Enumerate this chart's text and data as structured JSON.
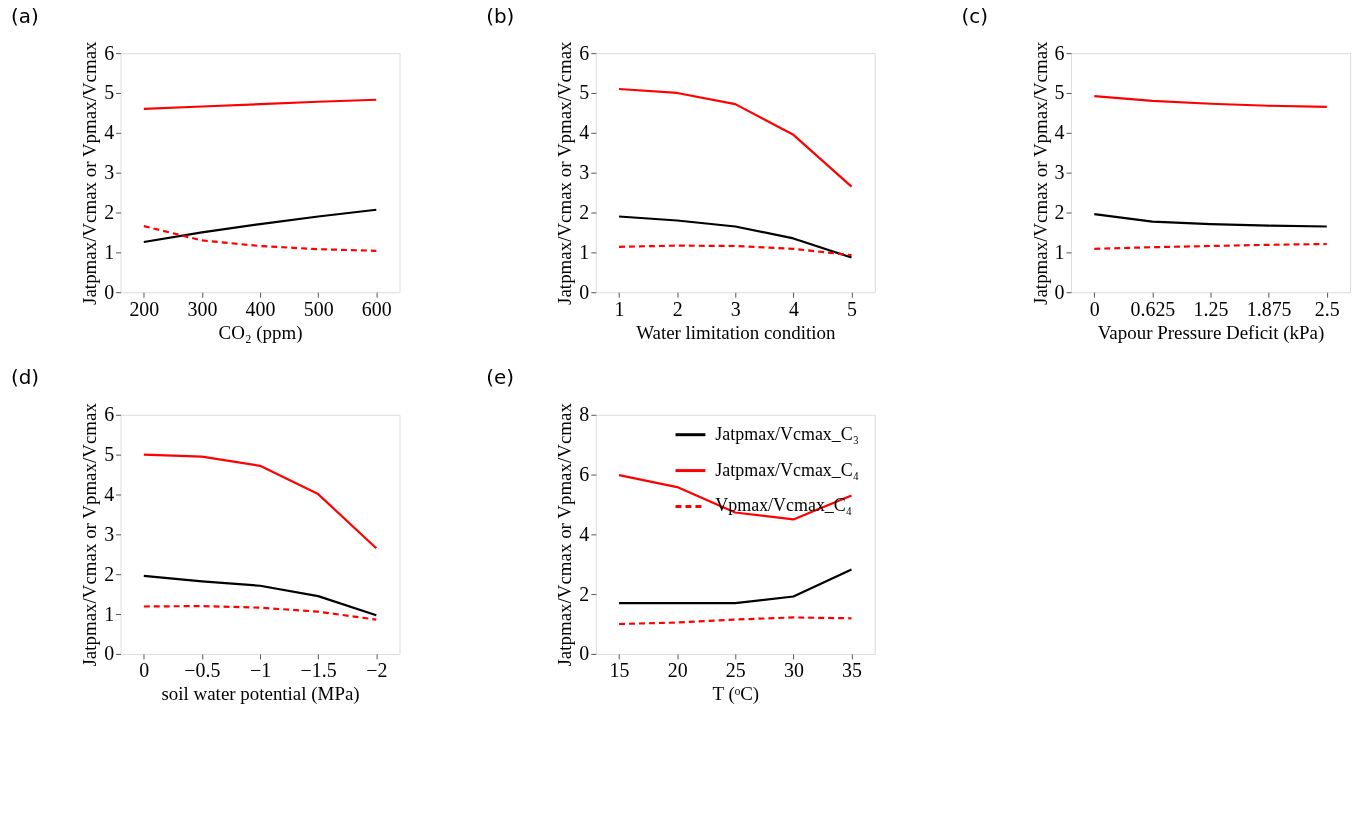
{
  "chart_data": [
    {
      "type": "line",
      "title": "(a)",
      "xlabel": "CO₂ (ppm)",
      "ylabel": "Jatpmax/Vcmax or Vpmax/Vcmax",
      "x": [
        200,
        300,
        400,
        500,
        600
      ],
      "xlim": [
        160,
        640
      ],
      "xticks": [
        200,
        300,
        400,
        500,
        600
      ],
      "ylim": [
        0,
        6
      ],
      "yticks": [
        0,
        1,
        2,
        3,
        4,
        5,
        6
      ],
      "grid": false,
      "legend": false,
      "series": [
        {
          "color": "#000000",
          "line_style": "solid",
          "values": [
            1.26,
            1.5,
            1.71,
            1.9,
            2.07
          ]
        },
        {
          "color": "#ff0000",
          "line_style": "solid",
          "values": [
            4.6,
            4.66,
            4.72,
            4.78,
            4.83
          ]
        },
        {
          "color": "#ff0000",
          "line_style": "dashed",
          "values": [
            1.66,
            1.3,
            1.16,
            1.08,
            1.04
          ]
        }
      ]
    },
    {
      "type": "line",
      "title": "(b)",
      "xlabel": "Water limitation condition",
      "ylabel": "Jatpmax/Vcmax or Vpmax/Vcmax",
      "x": [
        1,
        2,
        3,
        4,
        5
      ],
      "xlim": [
        0.6,
        5.4
      ],
      "xticks": [
        1,
        2,
        3,
        4,
        5
      ],
      "ylim": [
        0,
        6
      ],
      "yticks": [
        0,
        1,
        2,
        3,
        4,
        5,
        6
      ],
      "grid": false,
      "legend": false,
      "series": [
        {
          "color": "#000000",
          "line_style": "solid",
          "values": [
            1.9,
            1.8,
            1.65,
            1.35,
            0.87
          ]
        },
        {
          "color": "#ff0000",
          "line_style": "solid",
          "values": [
            5.1,
            5.0,
            4.72,
            3.95,
            2.65
          ]
        },
        {
          "color": "#ff0000",
          "line_style": "dashed",
          "values": [
            1.14,
            1.17,
            1.16,
            1.09,
            0.93
          ]
        }
      ]
    },
    {
      "type": "line",
      "title": "(c)",
      "xlabel": "Vapour Pressure Deficit (kPa)",
      "ylabel": "Jatpmax/Vcmax or Vpmax/Vcmax",
      "x": [
        0,
        0.625,
        1.25,
        1.875,
        2.5
      ],
      "xlim": [
        -0.25,
        2.75
      ],
      "xticks": [
        0,
        0.625,
        1.25,
        1.875,
        2.5
      ],
      "ylim": [
        0,
        6
      ],
      "yticks": [
        0,
        1,
        2,
        3,
        4,
        5,
        6
      ],
      "grid": false,
      "legend": false,
      "series": [
        {
          "color": "#000000",
          "line_style": "solid",
          "values": [
            1.96,
            1.77,
            1.71,
            1.67,
            1.65
          ]
        },
        {
          "color": "#ff0000",
          "line_style": "solid",
          "values": [
            4.92,
            4.8,
            4.73,
            4.68,
            4.65
          ]
        },
        {
          "color": "#ff0000",
          "line_style": "dashed",
          "values": [
            1.09,
            1.13,
            1.16,
            1.19,
            1.21
          ]
        }
      ]
    },
    {
      "type": "line",
      "title": "(d)",
      "xlabel": "soil water potential (MPa)",
      "ylabel": "Jatpmax/Vcmax or Vpmax/Vcmax",
      "x": [
        0,
        -0.5,
        -1,
        -1.5,
        -2
      ],
      "xlim": [
        0.2,
        -2.2
      ],
      "xticks": [
        0,
        -0.5,
        -1,
        -1.5,
        -2
      ],
      "ylim": [
        0,
        6
      ],
      "yticks": [
        0,
        1,
        2,
        3,
        4,
        5,
        6
      ],
      "grid": false,
      "legend": false,
      "series": [
        {
          "color": "#000000",
          "line_style": "solid",
          "values": [
            1.96,
            1.82,
            1.71,
            1.45,
            0.97
          ]
        },
        {
          "color": "#ff0000",
          "line_style": "solid",
          "values": [
            5.0,
            4.95,
            4.72,
            4.01,
            2.65
          ]
        },
        {
          "color": "#ff0000",
          "line_style": "dashed",
          "values": [
            1.19,
            1.2,
            1.16,
            1.06,
            0.86
          ]
        }
      ]
    },
    {
      "type": "line",
      "title": "(e)",
      "xlabel": "T (ᵒC)",
      "ylabel": "Jatpmax/Vcmax or Vpmax/Vcmax",
      "x": [
        15,
        20,
        25,
        30,
        35
      ],
      "xlim": [
        13,
        37
      ],
      "xticks": [
        15,
        20,
        25,
        30,
        35
      ],
      "ylim": [
        0,
        8
      ],
      "yticks": [
        0,
        2,
        4,
        6,
        8
      ],
      "grid": false,
      "legend": "top right",
      "series": [
        {
          "name": "Jatpmax/Vcmax_C₃",
          "color": "#000000",
          "line_style": "solid",
          "values": [
            1.7,
            1.7,
            1.7,
            1.92,
            2.82
          ]
        },
        {
          "name": "Jatpmax/Vcmax_C₄",
          "color": "#ff0000",
          "line_style": "solid",
          "values": [
            5.98,
            5.58,
            4.73,
            4.5,
            5.3
          ]
        },
        {
          "name": "Vpmax/Vcmax_C₄",
          "color": "#ff0000",
          "line_style": "dashed",
          "values": [
            1.0,
            1.05,
            1.15,
            1.22,
            1.19
          ]
        }
      ]
    }
  ]
}
